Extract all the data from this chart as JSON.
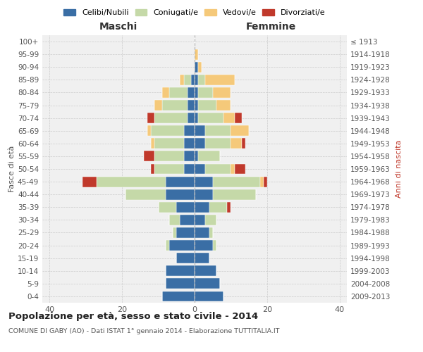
{
  "age_groups": [
    "0-4",
    "5-9",
    "10-14",
    "15-19",
    "20-24",
    "25-29",
    "30-34",
    "35-39",
    "40-44",
    "45-49",
    "50-54",
    "55-59",
    "60-64",
    "65-69",
    "70-74",
    "75-79",
    "80-84",
    "85-89",
    "90-94",
    "95-99",
    "100+"
  ],
  "birth_years": [
    "2009-2013",
    "2004-2008",
    "1999-2003",
    "1994-1998",
    "1989-1993",
    "1984-1988",
    "1979-1983",
    "1974-1978",
    "1969-1973",
    "1964-1968",
    "1959-1963",
    "1954-1958",
    "1949-1953",
    "1944-1948",
    "1939-1943",
    "1934-1938",
    "1929-1933",
    "1924-1928",
    "1919-1923",
    "1914-1918",
    "≤ 1913"
  ],
  "maschi": {
    "celibi": [
      9,
      8,
      8,
      5,
      7,
      5,
      4,
      5,
      8,
      8,
      3,
      3,
      3,
      3,
      2,
      2,
      2,
      1,
      0,
      0,
      0
    ],
    "coniugati": [
      0,
      0,
      0,
      0,
      1,
      1,
      3,
      5,
      11,
      19,
      8,
      8,
      8,
      9,
      9,
      7,
      5,
      2,
      0,
      0,
      0
    ],
    "vedovi": [
      0,
      0,
      0,
      0,
      0,
      0,
      0,
      0,
      0,
      0,
      0,
      0,
      1,
      1,
      0,
      2,
      2,
      1,
      0,
      0,
      0
    ],
    "divorziati": [
      0,
      0,
      0,
      0,
      0,
      0,
      0,
      0,
      0,
      4,
      1,
      3,
      0,
      0,
      2,
      0,
      0,
      0,
      0,
      0,
      0
    ]
  },
  "femmine": {
    "nubili": [
      8,
      7,
      6,
      4,
      5,
      4,
      3,
      4,
      5,
      5,
      3,
      1,
      3,
      3,
      1,
      1,
      1,
      1,
      1,
      0,
      0
    ],
    "coniugate": [
      0,
      0,
      0,
      0,
      1,
      1,
      3,
      5,
      12,
      13,
      7,
      6,
      7,
      7,
      7,
      5,
      4,
      2,
      0,
      0,
      0
    ],
    "vedove": [
      0,
      0,
      0,
      0,
      0,
      0,
      0,
      0,
      0,
      1,
      1,
      0,
      3,
      5,
      3,
      4,
      5,
      8,
      1,
      1,
      0
    ],
    "divorziate": [
      0,
      0,
      0,
      0,
      0,
      0,
      0,
      1,
      0,
      1,
      3,
      0,
      1,
      0,
      2,
      0,
      0,
      0,
      0,
      0,
      0
    ]
  },
  "colors": {
    "celibi": "#3a6ea5",
    "coniugati": "#c5d9a8",
    "vedovi": "#f5c97a",
    "divorziati": "#c0392b"
  },
  "xlim": 42,
  "title": "Popolazione per età, sesso e stato civile - 2014",
  "subtitle": "COMUNE DI GABY (AO) - Dati ISTAT 1° gennaio 2014 - Elaborazione TUTTITALIA.IT",
  "ylabel_left": "Fasce di età",
  "ylabel_right": "Anni di nascita",
  "xlabel_left": "Maschi",
  "xlabel_right": "Femmine",
  "bg_color": "#f0f0f0"
}
